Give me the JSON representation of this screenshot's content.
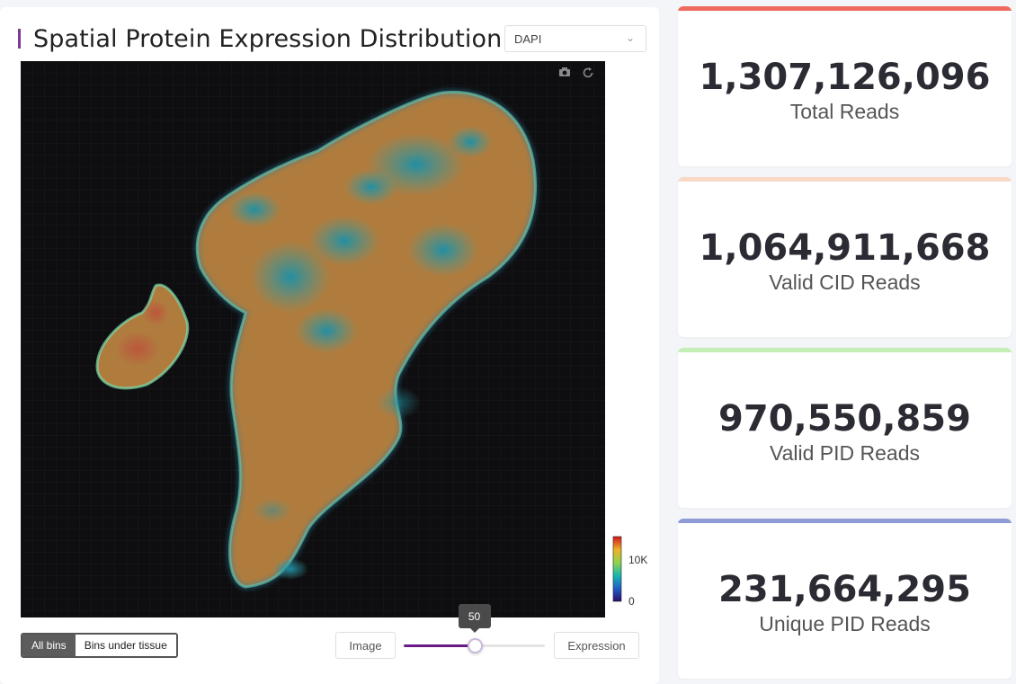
{
  "panel": {
    "title": "Spatial Protein Expression Distribution",
    "help_icon": "question-circle-icon",
    "select": {
      "value": "DAPI"
    },
    "toolbar": {
      "camera_icon": "camera-icon",
      "reset_icon": "reset-icon"
    },
    "colorbar": {
      "max_label": "10K",
      "min_label": "0"
    },
    "bins": {
      "all_label": "All bins",
      "under_tissue_label": "Bins under tissue",
      "active": "All bins"
    },
    "blend": {
      "left_label": "Image",
      "right_label": "Expression",
      "value": 50,
      "value_label": "50",
      "min": 0,
      "max": 100,
      "accent": "#6a1b8a"
    }
  },
  "stats": [
    {
      "value": "1,307,126,096",
      "label": "Total Reads",
      "color": "#ef6a5f"
    },
    {
      "value": "1,064,911,668",
      "label": "Valid CID Reads",
      "color": "#f8d9c6"
    },
    {
      "value": "970,550,859",
      "label": "Valid PID Reads",
      "color": "#c3efb6"
    },
    {
      "value": "231,664,295",
      "label": "Unique PID Reads",
      "color": "#8f9bd4"
    }
  ]
}
